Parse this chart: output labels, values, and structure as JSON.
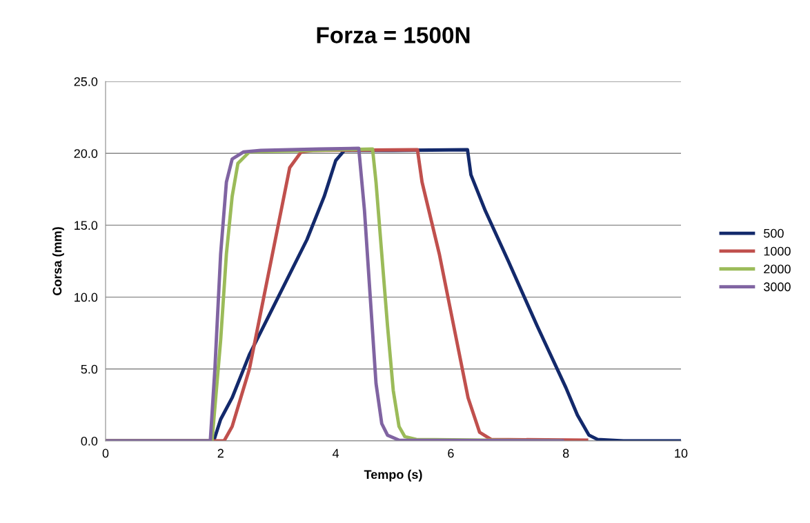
{
  "chart_data": {
    "type": "line",
    "title": "Forza = 1500N",
    "xlabel": "Tempo (s)",
    "ylabel": "Corsa (mm)",
    "xlim": [
      0,
      10
    ],
    "xticks": [
      0,
      2,
      4,
      6,
      8,
      10
    ],
    "ylim": [
      0,
      25
    ],
    "yticks": [
      {
        "value": 0,
        "label": "0.0"
      },
      {
        "value": 5,
        "label": "5.0"
      },
      {
        "value": 10,
        "label": "10.0"
      },
      {
        "value": 15,
        "label": "15.0"
      },
      {
        "value": 20,
        "label": "20.0"
      },
      {
        "value": 25,
        "label": "25.0"
      }
    ],
    "grid": "y",
    "legend": "right",
    "marker": "none",
    "line_style": "solid",
    "series": [
      {
        "name": "500",
        "color": "#13296b",
        "x": [
          0,
          1.88,
          2.0,
          2.2,
          2.5,
          3.0,
          3.5,
          3.8,
          4.0,
          4.15,
          5.0,
          6.29,
          6.35,
          6.6,
          7.0,
          7.5,
          8.0,
          8.2,
          8.4,
          8.55,
          9.0,
          10.0
        ],
        "values": [
          0,
          0,
          1.5,
          3.0,
          6.0,
          10.0,
          14.0,
          17.0,
          19.5,
          20.2,
          20.2,
          20.25,
          18.5,
          16.0,
          12.5,
          8.0,
          3.7,
          1.8,
          0.4,
          0.1,
          0,
          0
        ]
      },
      {
        "name": "1000",
        "color": "#c0504d",
        "x": [
          0,
          2.06,
          2.2,
          2.5,
          2.8,
          3.0,
          3.2,
          3.4,
          3.6,
          5.42,
          5.5,
          5.8,
          6.1,
          6.3,
          6.5,
          6.7,
          8.36
        ],
        "values": [
          0,
          0,
          1.0,
          5.0,
          11.0,
          15.0,
          19.0,
          20.1,
          20.2,
          20.25,
          18.0,
          13.0,
          7.0,
          3.0,
          0.6,
          0.1,
          0.05
        ]
      },
      {
        "name": "2000",
        "color": "#9bbb59",
        "x": [
          0,
          1.85,
          2.0,
          2.1,
          2.2,
          2.3,
          2.5,
          3.6,
          4.64,
          4.7,
          4.8,
          4.9,
          5.0,
          5.1,
          5.2,
          5.4,
          7.9
        ],
        "values": [
          0,
          0,
          7.0,
          13.0,
          17.0,
          19.3,
          20.1,
          20.2,
          20.3,
          18.0,
          13.0,
          8.0,
          3.5,
          1.0,
          0.3,
          0.1,
          0
        ]
      },
      {
        "name": "3000",
        "color": "#8064a2",
        "x": [
          0,
          1.82,
          1.9,
          2.0,
          2.1,
          2.2,
          2.4,
          2.7,
          3.7,
          4.4,
          4.5,
          4.6,
          4.7,
          4.8,
          4.9,
          5.1,
          7.94
        ],
        "values": [
          0,
          0,
          5.0,
          13.0,
          18.0,
          19.6,
          20.1,
          20.2,
          20.3,
          20.35,
          16.0,
          10.0,
          4.0,
          1.2,
          0.4,
          0.05,
          0
        ]
      }
    ]
  }
}
